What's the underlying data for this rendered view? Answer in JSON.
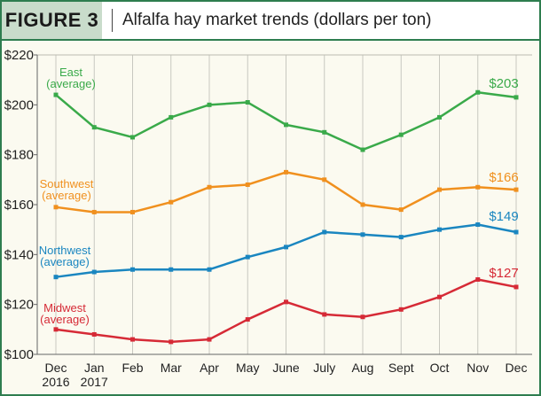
{
  "figure_label": "FIGURE 3",
  "title": "Alfalfa hay market trends (dollars per ton)",
  "chart_data": {
    "type": "line",
    "title": "Alfalfa hay market trends (dollars per ton)",
    "categories": [
      [
        "Dec",
        "2016"
      ],
      [
        "Jan",
        "2017"
      ],
      [
        "Feb"
      ],
      [
        "Mar"
      ],
      [
        "Apr"
      ],
      [
        "May"
      ],
      [
        "June"
      ],
      [
        "July"
      ],
      [
        "Aug"
      ],
      [
        "Sept"
      ],
      [
        "Oct"
      ],
      [
        "Nov"
      ],
      [
        "Dec"
      ]
    ],
    "ylim": [
      100,
      220
    ],
    "yticks": [
      100,
      120,
      140,
      160,
      180,
      200,
      220
    ],
    "ytick_labels": [
      "$100",
      "$120",
      "$140",
      "$160",
      "$180",
      "$200",
      "$220"
    ],
    "grid": "vertical",
    "series": [
      {
        "name": [
          "East",
          "(average)"
        ],
        "color": "#3aaa4a",
        "values": [
          204,
          191,
          187,
          195,
          200,
          201,
          192,
          189,
          182,
          188,
          195,
          205,
          203
        ],
        "end_label": "$203"
      },
      {
        "name": [
          "Southwest",
          "(average)"
        ],
        "color": "#f0901e",
        "values": [
          159,
          157,
          157,
          161,
          167,
          168,
          173,
          170,
          160,
          158,
          166,
          167,
          166
        ],
        "end_label": "$166"
      },
      {
        "name": [
          "Northwest",
          "(average)"
        ],
        "color": "#1a86c0",
        "values": [
          131,
          133,
          134,
          134,
          134,
          139,
          143,
          149,
          148,
          147,
          150,
          152,
          149
        ],
        "end_label": "$149"
      },
      {
        "name": [
          "Midwest",
          "(average)"
        ],
        "color": "#d62a36",
        "values": [
          110,
          108,
          106,
          105,
          106,
          114,
          121,
          116,
          115,
          118,
          123,
          130,
          127
        ],
        "end_label": "$127"
      }
    ]
  }
}
